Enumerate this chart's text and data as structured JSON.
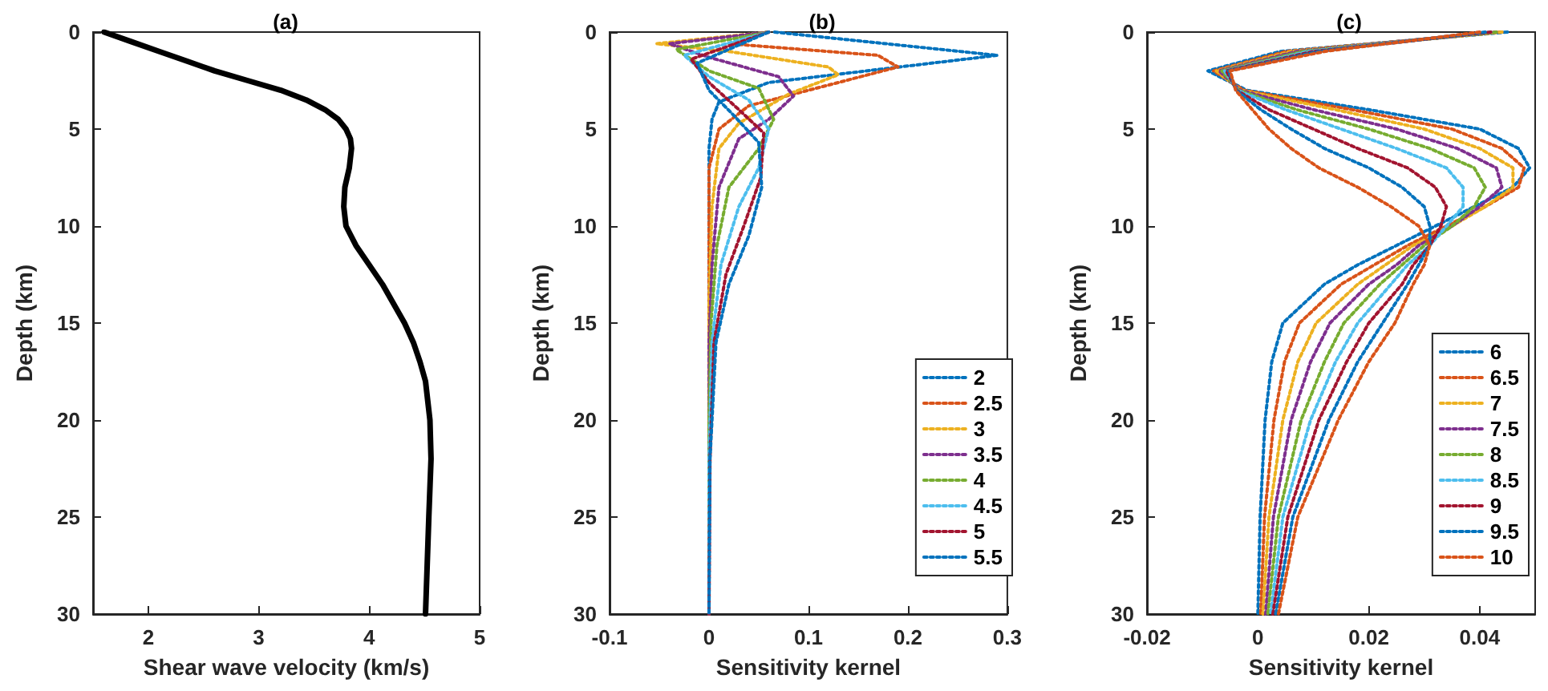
{
  "chart_data": [
    {
      "type": "line",
      "title": "(a)",
      "xlabel": "Shear wave velocity (km/s)",
      "ylabel": "Depth (km)",
      "xlim": [
        1.5,
        5
      ],
      "xticks": [
        2,
        3,
        4,
        5
      ],
      "ylim": [
        30,
        0
      ],
      "yticks": [
        0,
        5,
        10,
        15,
        20,
        25,
        30
      ],
      "marker": "none",
      "line_style": "solid",
      "series": [
        {
          "color": "#000000",
          "x": [
            1.6,
            1.85,
            2.1,
            2.35,
            2.6,
            2.9,
            3.2,
            3.43,
            3.6,
            3.72,
            3.79,
            3.83,
            3.84,
            3.82,
            3.78,
            3.77,
            3.79,
            3.88,
            4.0,
            4.12,
            4.22,
            4.32,
            4.4,
            4.46,
            4.51,
            4.55,
            4.56,
            4.54,
            4.51
          ],
          "values": [
            0,
            0.5,
            1,
            1.5,
            2,
            2.5,
            3,
            3.5,
            4,
            4.5,
            5,
            5.5,
            6,
            7,
            8,
            9,
            10,
            11,
            12,
            13,
            14,
            15,
            16,
            17,
            18,
            20,
            22,
            25,
            30
          ]
        }
      ]
    },
    {
      "type": "line",
      "title": "(b)",
      "xlabel": "Sensitivity kernel",
      "ylabel": "Depth (km)",
      "xlim": [
        -0.1,
        0.3
      ],
      "xticks": [
        -0.1,
        0,
        0.1,
        0.2,
        0.3
      ],
      "ylim": [
        30,
        0
      ],
      "yticks": [
        0,
        5,
        10,
        15,
        20,
        25,
        30
      ],
      "marker": "none",
      "line_style": "dotted",
      "legend": "bottom right",
      "series": [
        {
          "name": "2",
          "color": "#0072bd",
          "x": [
            0.066,
            0.29,
            0.06,
            0.01,
            0.003,
            0,
            0
          ],
          "values": [
            0,
            1.2,
            2.6,
            3.6,
            4.5,
            6,
            30
          ]
        },
        {
          "name": "2.5",
          "color": "#d95319",
          "x": [
            0.06,
            0.02,
            0.17,
            0.19,
            0.04,
            0.01,
            0,
            0,
            0
          ],
          "values": [
            0,
            0.6,
            1.2,
            1.8,
            3.8,
            5,
            7,
            12,
            30
          ]
        },
        {
          "name": "3",
          "color": "#edb120",
          "x": [
            0.06,
            -0.053,
            0.02,
            0.12,
            0.13,
            0.08,
            0.03,
            0.01,
            0.003,
            0,
            0
          ],
          "values": [
            0,
            0.6,
            1,
            1.8,
            2.2,
            3.2,
            4.7,
            6,
            9,
            14,
            30
          ]
        },
        {
          "name": "3.5",
          "color": "#7e2f8e",
          "x": [
            0.06,
            -0.04,
            0,
            0.07,
            0.085,
            0.06,
            0.03,
            0.01,
            0.003,
            0,
            0
          ],
          "values": [
            0,
            0.6,
            1.3,
            2.3,
            3.3,
            4.5,
            5.5,
            8,
            12,
            16,
            30
          ]
        },
        {
          "name": "4",
          "color": "#77ac30",
          "x": [
            0.06,
            -0.033,
            0,
            0.05,
            0.065,
            0.05,
            0.02,
            0.008,
            0.002,
            0,
            0
          ],
          "values": [
            0,
            0.9,
            2,
            2.9,
            4.5,
            6,
            8,
            11,
            15,
            20,
            30
          ]
        },
        {
          "name": "4.5",
          "color": "#4dbeee",
          "x": [
            0.06,
            -0.025,
            0,
            0.04,
            0.06,
            0.05,
            0.03,
            0.012,
            0.003,
            0,
            0
          ],
          "values": [
            0,
            1.2,
            2.3,
            3.5,
            5,
            7,
            9,
            12,
            16,
            22,
            30
          ]
        },
        {
          "name": "5",
          "color": "#a2142f",
          "x": [
            0.06,
            -0.018,
            0,
            0.03,
            0.055,
            0.052,
            0.035,
            0.017,
            0.005,
            0.001,
            0
          ],
          "values": [
            0,
            1.4,
            2.6,
            4,
            5.2,
            7.5,
            10,
            12.5,
            16,
            22,
            30
          ]
        },
        {
          "name": "5.5",
          "color": "#0072bd",
          "x": [
            0.06,
            -0.012,
            0,
            0.025,
            0.05,
            0.053,
            0.04,
            0.02,
            0.007,
            0.001,
            0
          ],
          "values": [
            0,
            1.6,
            3,
            4.3,
            5.7,
            8,
            10.5,
            13,
            16,
            22,
            30
          ]
        }
      ]
    },
    {
      "type": "line",
      "title": "(c)",
      "xlabel": "Sensitivity kernel",
      "ylabel": "Depth (km)",
      "xlim": [
        -0.02,
        0.05
      ],
      "xticks": [
        -0.02,
        0,
        0.02,
        0.04
      ],
      "ylim": [
        30,
        0
      ],
      "yticks": [
        0,
        5,
        10,
        15,
        20,
        25,
        30
      ],
      "marker": "none",
      "line_style": "dotted",
      "legend": "bottom right",
      "series": [
        {
          "name": "6",
          "color": "#0072bd",
          "x": [
            0.045,
            0.004,
            -0.009,
            -0.002,
            0.02,
            0.04,
            0.047,
            0.049,
            0.046,
            0.039,
            0.032,
            0.025,
            0.018,
            0.012,
            0.0045,
            0.0025,
            0.0013,
            0.0004,
            0
          ],
          "values": [
            0,
            1,
            2,
            3,
            4,
            5,
            6,
            7,
            8,
            9,
            10,
            11,
            12,
            13,
            15,
            17,
            20,
            25,
            30
          ]
        },
        {
          "name": "6.5",
          "color": "#d95319",
          "x": [
            0.044,
            0.005,
            -0.008,
            -0.0025,
            0.017,
            0.035,
            0.044,
            0.048,
            0.047,
            0.041,
            0.034,
            0.027,
            0.021,
            0.015,
            0.0075,
            0.0048,
            0.0029,
            0.0012,
            0.0005
          ],
          "values": [
            0,
            1,
            2,
            3,
            4,
            5,
            6,
            7,
            8,
            9,
            10,
            11,
            12,
            13,
            15,
            17,
            20,
            25,
            30
          ]
        },
        {
          "name": "7",
          "color": "#edb120",
          "x": [
            0.044,
            0.006,
            -0.0075,
            -0.003,
            0.014,
            0.03,
            0.04,
            0.046,
            0.046,
            0.041,
            0.035,
            0.028,
            0.023,
            0.018,
            0.0105,
            0.0072,
            0.0045,
            0.002,
            0.0009
          ],
          "values": [
            0,
            1,
            2,
            3,
            4,
            5,
            6,
            7,
            8,
            9,
            10,
            11,
            12,
            13,
            15,
            17,
            20,
            25,
            30
          ]
        },
        {
          "name": "7.5",
          "color": "#7e2f8e",
          "x": [
            0.043,
            0.007,
            -0.007,
            -0.0032,
            0.01,
            0.025,
            0.036,
            0.043,
            0.044,
            0.04,
            0.035,
            0.029,
            0.025,
            0.02,
            0.013,
            0.0095,
            0.006,
            0.0028,
            0.0014
          ],
          "values": [
            0,
            1,
            2,
            3,
            4,
            5,
            6,
            7,
            8,
            9,
            10,
            11,
            12,
            13,
            15,
            17,
            20,
            25,
            30
          ]
        },
        {
          "name": "8",
          "color": "#77ac30",
          "x": [
            0.043,
            0.008,
            -0.0065,
            -0.0035,
            0.007,
            0.02,
            0.031,
            0.039,
            0.041,
            0.039,
            0.035,
            0.03,
            0.026,
            0.022,
            0.0155,
            0.012,
            0.0078,
            0.0037,
            0.0018
          ],
          "values": [
            0,
            1,
            2,
            3,
            4,
            5,
            6,
            7,
            8,
            9,
            10,
            11,
            12,
            13,
            15,
            17,
            20,
            25,
            30
          ]
        },
        {
          "name": "8.5",
          "color": "#4dbeee",
          "x": [
            0.042,
            0.009,
            -0.006,
            -0.0037,
            0.005,
            0.015,
            0.025,
            0.034,
            0.037,
            0.037,
            0.034,
            0.031,
            0.027,
            0.024,
            0.018,
            0.014,
            0.0095,
            0.0045,
            0.0023
          ],
          "values": [
            0,
            1,
            2,
            3,
            4,
            5,
            6,
            7,
            8,
            9,
            10,
            11,
            12,
            13,
            15,
            17,
            20,
            25,
            30
          ]
        },
        {
          "name": "9",
          "color": "#a2142f",
          "x": [
            0.042,
            0.01,
            -0.0057,
            -0.0038,
            0.002,
            0.01,
            0.018,
            0.027,
            0.032,
            0.034,
            0.033,
            0.031,
            0.028,
            0.026,
            0.02,
            0.016,
            0.011,
            0.0054,
            0.0027
          ],
          "values": [
            0,
            1,
            2,
            3,
            4,
            5,
            6,
            7,
            8,
            9,
            10,
            11,
            12,
            13,
            15,
            17,
            20,
            25,
            30
          ]
        },
        {
          "name": "9.5",
          "color": "#0072bd",
          "x": [
            0.041,
            0.011,
            -0.0053,
            -0.0039,
            0.0005,
            0.006,
            0.012,
            0.02,
            0.026,
            0.03,
            0.031,
            0.031,
            0.029,
            0.027,
            0.0225,
            0.018,
            0.0128,
            0.0063,
            0.0032
          ],
          "values": [
            0,
            1,
            2,
            3,
            4,
            5,
            6,
            7,
            8,
            9,
            10,
            11,
            12,
            13,
            15,
            17,
            20,
            25,
            30
          ]
        },
        {
          "name": "10",
          "color": "#d95319",
          "x": [
            0.04,
            0.012,
            -0.005,
            -0.004,
            -0.001,
            0.002,
            0.006,
            0.011,
            0.018,
            0.024,
            0.029,
            0.031,
            0.03,
            0.028,
            0.0247,
            0.02,
            0.0145,
            0.0072,
            0.0037
          ],
          "values": [
            0,
            1,
            2,
            3,
            4,
            5,
            6,
            7,
            8,
            9,
            10,
            11,
            12,
            13,
            15,
            17,
            20,
            25,
            30
          ]
        }
      ]
    }
  ]
}
